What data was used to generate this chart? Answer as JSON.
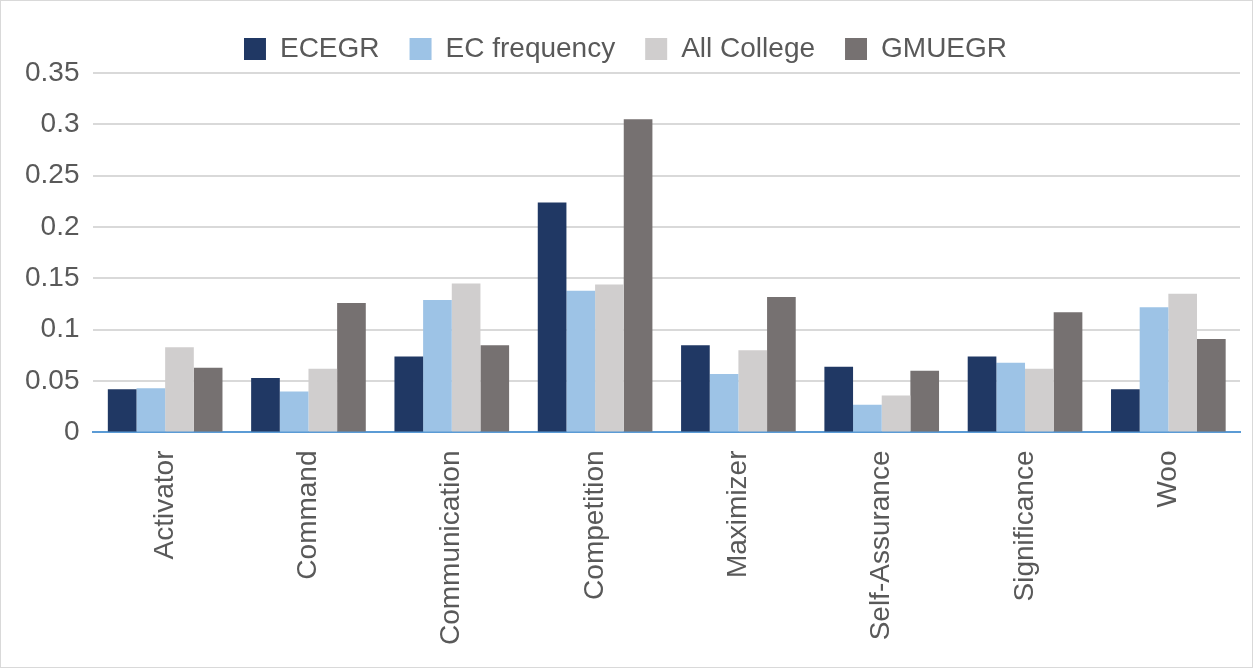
{
  "chart_data": {
    "type": "bar",
    "categories": [
      "Activator",
      "Command",
      "Communication",
      "Competition",
      "Maximizer",
      "Self-Assurance",
      "Significance",
      "Woo"
    ],
    "series": [
      {
        "name": "ECEGR",
        "color": "#203864",
        "values": [
          0.042,
          0.053,
          0.074,
          0.224,
          0.085,
          0.064,
          0.074,
          0.042
        ]
      },
      {
        "name": "EC frequency",
        "color": "#9dc3e6",
        "values": [
          0.043,
          0.04,
          0.129,
          0.138,
          0.057,
          0.027,
          0.068,
          0.122
        ]
      },
      {
        "name": "All College",
        "color": "#d0cece",
        "values": [
          0.083,
          0.062,
          0.145,
          0.144,
          0.08,
          0.036,
          0.062,
          0.135
        ]
      },
      {
        "name": "GMUEGR",
        "color": "#767171",
        "values": [
          0.063,
          0.126,
          0.085,
          0.305,
          0.132,
          0.06,
          0.117,
          0.091
        ]
      }
    ],
    "ylim": [
      0,
      0.35
    ],
    "yticks": [
      0,
      0.05,
      0.1,
      0.15,
      0.2,
      0.25,
      0.3,
      0.35
    ],
    "grid": "y",
    "legend": "top"
  }
}
